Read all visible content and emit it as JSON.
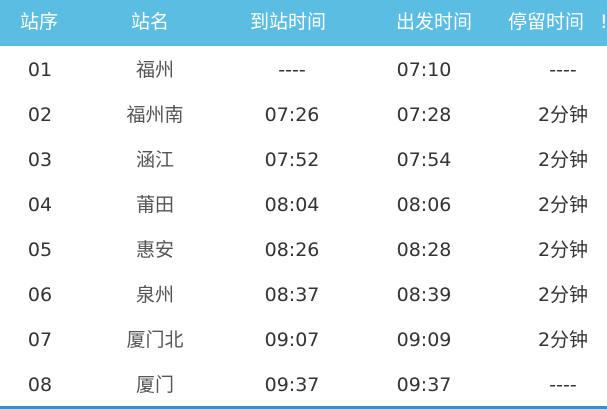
{
  "header": {
    "no": "站序",
    "station": "站名",
    "arrive": "到站时间",
    "depart": "出发时间",
    "stop": "停留时间",
    "extra": "!"
  },
  "rows": [
    {
      "no": "01",
      "station": "福州",
      "arrive": "----",
      "depart": "07:10",
      "stop": "----"
    },
    {
      "no": "02",
      "station": "福州南",
      "arrive": "07:26",
      "depart": "07:28",
      "stop": "2分钟"
    },
    {
      "no": "03",
      "station": "涵江",
      "arrive": "07:52",
      "depart": "07:54",
      "stop": "2分钟"
    },
    {
      "no": "04",
      "station": "莆田",
      "arrive": "08:04",
      "depart": "08:06",
      "stop": "2分钟"
    },
    {
      "no": "05",
      "station": "惠安",
      "arrive": "08:26",
      "depart": "08:28",
      "stop": "2分钟"
    },
    {
      "no": "06",
      "station": "泉州",
      "arrive": "08:37",
      "depart": "08:39",
      "stop": "2分钟"
    },
    {
      "no": "07",
      "station": "厦门北",
      "arrive": "09:07",
      "depart": "09:09",
      "stop": "2分钟"
    },
    {
      "no": "08",
      "station": "厦门",
      "arrive": "09:37",
      "depart": "09:37",
      "stop": "----"
    }
  ],
  "colors": {
    "header_bg": "#5bbde2",
    "bottom_border": "#3d8fc7"
  }
}
